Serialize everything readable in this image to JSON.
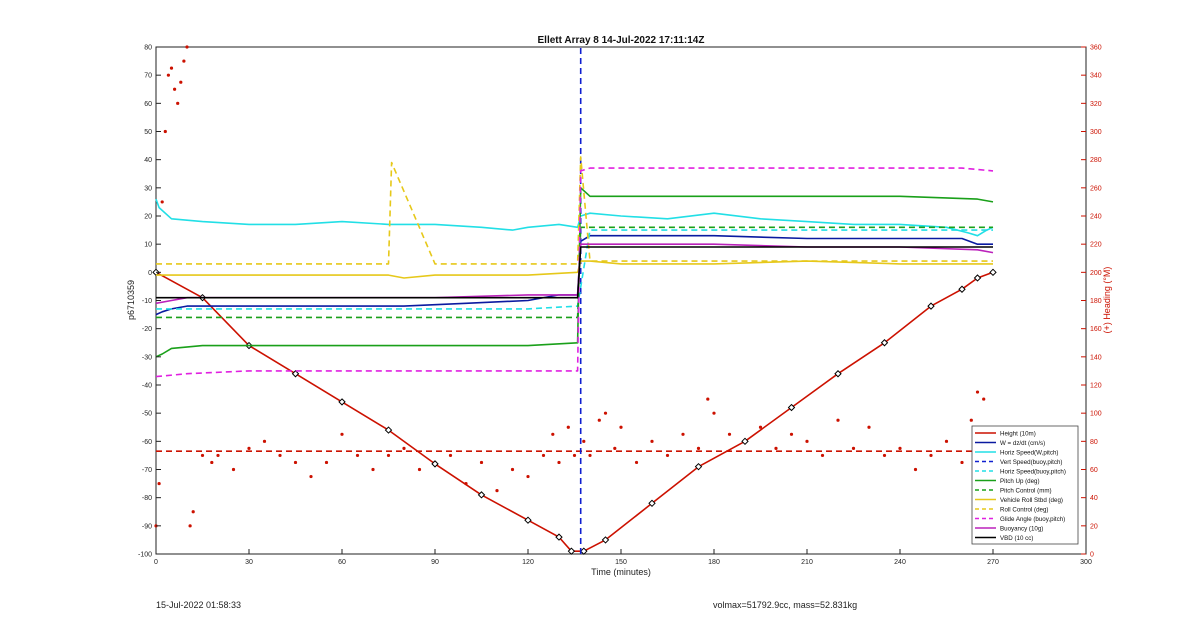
{
  "chart_data": {
    "type": "line",
    "title": "Ellett Array 8 14-Jul-2022 17:11:14Z",
    "xlabel": "Time (minutes)",
    "ylabel": "p6710359",
    "y2label": "(+) Heading (°M)",
    "xlim": [
      0,
      300
    ],
    "ylim": [
      -100,
      80
    ],
    "y2lim": [
      0,
      360
    ],
    "xticks": [
      0,
      30,
      60,
      90,
      120,
      150,
      180,
      210,
      240,
      270,
      300
    ],
    "yticks": [
      -100,
      -90,
      -80,
      -70,
      -60,
      -50,
      -40,
      -30,
      -20,
      -10,
      0,
      10,
      20,
      30,
      40,
      50,
      60,
      70,
      80
    ],
    "y2ticks": [
      0,
      20,
      40,
      60,
      80,
      100,
      120,
      140,
      160,
      180,
      200,
      220,
      240,
      260,
      280,
      300,
      320,
      340,
      360
    ],
    "grid": false,
    "legend_position": "bottom-right",
    "series": [
      {
        "name": "Height (10m)",
        "color": "#cc1100",
        "style": "solid-marker",
        "axis": "left",
        "x": [
          0,
          15,
          30,
          45,
          60,
          75,
          90,
          105,
          120,
          130,
          134,
          138,
          145,
          160,
          175,
          190,
          205,
          220,
          235,
          250,
          260,
          265,
          270
        ],
        "y": [
          0,
          -9,
          -26,
          -36,
          -46,
          -56,
          -68,
          -79,
          -88,
          -94,
          -99,
          -99,
          -95,
          -82,
          -69,
          -60,
          -48,
          -36,
          -25,
          -12,
          -6,
          -2,
          0
        ]
      },
      {
        "name": "W = dz/dt (cm/s)",
        "color": "#0a1aa0",
        "style": "solid",
        "axis": "left",
        "x": [
          0,
          2,
          5,
          10,
          20,
          40,
          60,
          80,
          100,
          120,
          130,
          136,
          137,
          140,
          150,
          180,
          210,
          240,
          260,
          265,
          270
        ],
        "y": [
          -15,
          -14,
          -13,
          -12,
          -12,
          -12,
          -12,
          -12,
          -11,
          -10,
          -8,
          -8,
          11,
          13,
          13,
          13,
          12,
          12,
          12,
          10,
          10
        ]
      },
      {
        "name": "Horiz Speed(W,pitch)",
        "color": "#22dfe6",
        "style": "solid",
        "axis": "left",
        "x": [
          0,
          1,
          5,
          15,
          30,
          45,
          60,
          75,
          90,
          105,
          115,
          120,
          130,
          136,
          137,
          140,
          150,
          165,
          180,
          195,
          210,
          225,
          240,
          255,
          262,
          265,
          268,
          270
        ],
        "y": [
          26,
          23,
          19,
          18,
          17,
          17,
          18,
          17,
          17,
          16,
          15,
          16,
          17,
          16,
          20,
          21,
          20,
          19,
          21,
          19,
          18,
          17,
          17,
          16,
          14,
          13,
          15,
          16
        ]
      },
      {
        "name": "Vert Speed(buoy,pitch)",
        "color": "#1020d0",
        "style": "dashed",
        "axis": "left",
        "x": [
          137,
          137
        ],
        "y": [
          -100,
          80
        ]
      },
      {
        "name": "Horiz Speed(buoy,pitch)",
        "color": "#22dfe6",
        "style": "dashed",
        "axis": "left",
        "x": [
          0,
          30,
          60,
          90,
          120,
          136,
          140,
          170,
          200,
          230,
          260,
          270
        ],
        "y": [
          -13,
          -13,
          -13,
          -13,
          -13,
          -12,
          15,
          15,
          15,
          15,
          15,
          15
        ]
      },
      {
        "name": "Pitch Up (deg)",
        "color": "#1aa01a",
        "style": "solid",
        "axis": "left",
        "x": [
          0,
          2,
          5,
          15,
          30,
          60,
          90,
          120,
          136,
          137,
          140,
          150,
          180,
          210,
          240,
          265,
          270
        ],
        "y": [
          -30,
          -29,
          -27,
          -26,
          -26,
          -26,
          -26,
          -26,
          -25,
          30,
          27,
          27,
          27,
          27,
          27,
          26,
          25
        ]
      },
      {
        "name": "Pitch Control (mm)",
        "color": "#1aa01a",
        "style": "dashed",
        "axis": "left",
        "x": [
          0,
          30,
          60,
          90,
          120,
          136,
          137,
          170,
          210,
          250,
          270
        ],
        "y": [
          -16,
          -16,
          -16,
          -16,
          -16,
          -16,
          16,
          16,
          16,
          16,
          16
        ]
      },
      {
        "name": "Vehicle Roll Stbd (deg)",
        "color": "#e6c81a",
        "style": "solid",
        "axis": "left",
        "x": [
          0,
          30,
          60,
          75,
          80,
          90,
          120,
          136,
          137,
          140,
          150,
          180,
          210,
          240,
          260,
          270
        ],
        "y": [
          -1,
          -1,
          -1,
          -1,
          -2,
          -1,
          -1,
          0,
          4,
          4,
          3,
          3,
          4,
          3,
          3,
          3
        ]
      },
      {
        "name": "Roll Control (deg)",
        "color": "#e6c81a",
        "style": "dashed",
        "axis": "left",
        "x": [
          0,
          30,
          60,
          75,
          76,
          90,
          120,
          136,
          137,
          140,
          170,
          200,
          230,
          260,
          270
        ],
        "y": [
          3,
          3,
          3,
          3,
          39,
          3,
          3,
          3,
          41,
          4,
          4,
          4,
          4,
          4,
          4
        ]
      },
      {
        "name": "Glide Angle (buoy,pitch)",
        "color": "#e020e0",
        "style": "dashed",
        "axis": "left",
        "x": [
          0,
          10,
          30,
          60,
          90,
          120,
          136,
          137,
          140,
          170,
          200,
          230,
          260,
          270
        ],
        "y": [
          -37,
          -36,
          -35,
          -35,
          -35,
          -35,
          -35,
          36,
          37,
          37,
          37,
          37,
          37,
          36
        ]
      },
      {
        "name": "Buoyancy (10g)",
        "color": "#bb22bb",
        "style": "solid",
        "axis": "left",
        "x": [
          0,
          5,
          10,
          30,
          60,
          90,
          120,
          136,
          137,
          150,
          180,
          210,
          240,
          265,
          270
        ],
        "y": [
          -11,
          -10,
          -9,
          -9,
          -9,
          -9,
          -8,
          -8,
          10,
          10,
          10,
          9,
          9,
          8,
          7
        ]
      },
      {
        "name": "VBD (10 cc)",
        "color": "#000000",
        "style": "solid",
        "axis": "left",
        "x": [
          0,
          1,
          5,
          30,
          60,
          90,
          120,
          136,
          137,
          150,
          180,
          210,
          240,
          265,
          270
        ],
        "y": [
          -9,
          -9,
          -9,
          -9,
          -9,
          -9,
          -9,
          -9,
          9,
          9,
          9,
          9,
          9,
          9,
          9
        ]
      }
    ],
    "heading_scatter": {
      "name": "Heading",
      "color": "#cc1100",
      "axis": "right",
      "x": [
        0,
        1,
        2,
        3,
        4,
        5,
        6,
        7,
        8,
        9,
        10,
        11,
        12,
        15,
        18,
        20,
        25,
        30,
        35,
        40,
        45,
        50,
        55,
        60,
        65,
        70,
        75,
        80,
        85,
        90,
        95,
        100,
        105,
        110,
        115,
        120,
        125,
        128,
        130,
        133,
        135,
        138,
        140,
        143,
        145,
        148,
        150,
        155,
        160,
        165,
        170,
        175,
        178,
        180,
        185,
        190,
        195,
        200,
        205,
        210,
        215,
        220,
        225,
        230,
        235,
        240,
        245,
        250,
        255,
        260,
        263,
        265,
        267,
        270
      ],
      "y": [
        20,
        50,
        250,
        300,
        340,
        345,
        330,
        320,
        335,
        350,
        360,
        20,
        30,
        70,
        65,
        70,
        60,
        75,
        80,
        70,
        65,
        55,
        65,
        85,
        70,
        60,
        70,
        75,
        60,
        65,
        70,
        50,
        65,
        45,
        60,
        55,
        70,
        85,
        65,
        90,
        70,
        80,
        70,
        95,
        100,
        75,
        90,
        65,
        80,
        70,
        85,
        75,
        110,
        100,
        85,
        80,
        90,
        75,
        85,
        80,
        70,
        95,
        75,
        90,
        70,
        75,
        60,
        70,
        80,
        65,
        95,
        115,
        110,
        80
      ],
      "mean": 73
    }
  },
  "footer": {
    "left_timestamp": "15-Jul-2022 01:58:33",
    "right_info": "volmax=51792.9cc, mass=52.831kg"
  }
}
